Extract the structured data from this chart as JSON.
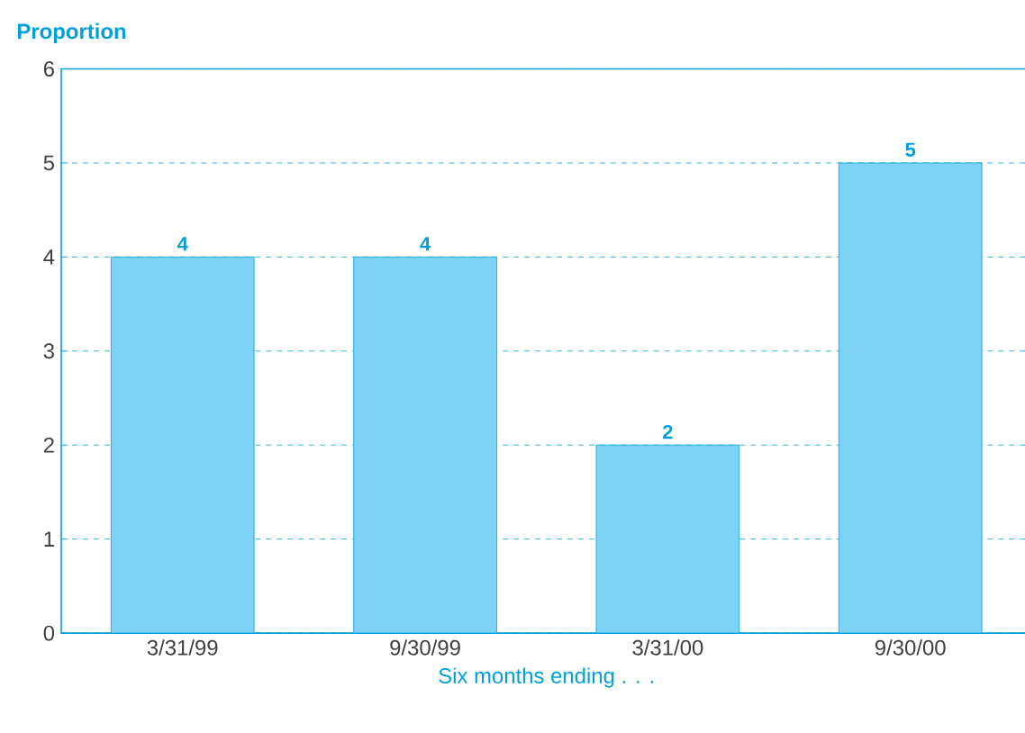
{
  "chart_data": {
    "type": "bar",
    "ylabel": "Proportion",
    "xlabel": "Six months ending . . .",
    "categories": [
      "3/31/99",
      "9/30/99",
      "3/31/00",
      "9/30/00"
    ],
    "values": [
      4,
      4,
      2,
      5
    ],
    "color": "#7dd3f5",
    "ylim": [
      0,
      6
    ],
    "yticks": [
      0,
      1,
      2,
      3,
      4,
      5,
      6
    ],
    "grid": "y",
    "data_labels": true
  }
}
